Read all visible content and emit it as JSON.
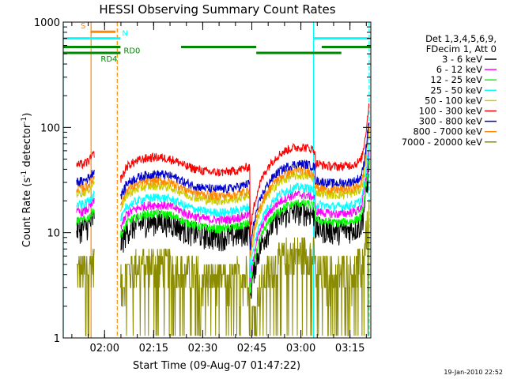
{
  "chart_data": {
    "type": "line",
    "title": "HESSI Observing Summary Count Rates",
    "xlabel": "Start Time (09-Aug-07 01:47:22)",
    "ylabel_main": "Count Rate (s",
    "ylabel_sup1": "-1",
    "ylabel_mid": " detector",
    "ylabel_sup2": "-1",
    "ylabel_end": ")",
    "y_scale": "log",
    "ylim": [
      1,
      1000
    ],
    "xlim_minutes": [
      0,
      94
    ],
    "x_ticks": [
      {
        "label": "02:00",
        "minute": 12.63
      },
      {
        "label": "02:15",
        "minute": 27.63
      },
      {
        "label": "02:30",
        "minute": 42.63
      },
      {
        "label": "02:45",
        "minute": 57.63
      },
      {
        "label": "03:00",
        "minute": 72.63
      },
      {
        "label": "03:15",
        "minute": 87.63
      }
    ],
    "y_ticks": [
      {
        "label": "1",
        "value": 1
      },
      {
        "label": "10",
        "value": 10
      },
      {
        "label": "100",
        "value": 100
      },
      {
        "label": "1000",
        "value": 1000
      }
    ],
    "legend_header": [
      "Det 1,3,4,5,6,9,",
      "FDecim 1, Att 0"
    ],
    "legend_placement": "right",
    "series": [
      {
        "name": "3 - 6 keV",
        "color": "#000000",
        "level": 1.6
      },
      {
        "name": "6 - 12 keV",
        "color": "#ff00ff",
        "level": 2.3
      },
      {
        "name": "12 - 25 keV",
        "color": "#00ff00",
        "level": 1.9
      },
      {
        "name": "25 - 50 keV",
        "color": "#00ffff",
        "level": 2.7
      },
      {
        "name": "50 - 100 keV",
        "color": "#cccc00",
        "level": 3.5
      },
      {
        "name": "100 - 300 keV",
        "color": "#ff0000",
        "level": 6.5
      },
      {
        "name": "300 - 800 keV",
        "color": "#0000cc",
        "level": 4.5
      },
      {
        "name": "800 - 7000 keV",
        "color": "#ff8800",
        "level": 3.9
      },
      {
        "name": "7000 - 20000 keV",
        "color": "#8b8b00",
        "level": 0.65
      }
    ],
    "flags": [
      {
        "label": "S",
        "color": "#ff8800",
        "segments": [
          [
            8.3,
            16.0
          ]
        ],
        "level_value": 810
      },
      {
        "label": "N",
        "color": "#00ffff",
        "segments": [
          [
            0,
            17.5
          ],
          [
            76.5,
            94
          ]
        ],
        "level_value": 700
      },
      {
        "label": "RD0",
        "color": "#008800",
        "segments": [
          [
            0,
            17.5
          ],
          [
            36,
            59
          ],
          [
            79,
            94
          ]
        ],
        "level_value": 580
      },
      {
        "label": "RD4",
        "color": "#008800",
        "segments": [
          [
            0,
            17.5
          ],
          [
            59,
            85
          ]
        ],
        "level_value": 510
      }
    ],
    "vertical_markers": [
      {
        "minute": 0,
        "color": "#00ffff",
        "style": "solid"
      },
      {
        "minute": 8.5,
        "color": "#ff8800",
        "style": "solid"
      },
      {
        "minute": 16.5,
        "color": "#ff8800",
        "style": "dashed"
      },
      {
        "minute": 76.5,
        "color": "#00ffff",
        "style": "solid"
      },
      {
        "minute": 93.5,
        "color": "#00ffff",
        "style": "dashed"
      }
    ],
    "timestamp": "19-Jan-2010 22:52"
  }
}
